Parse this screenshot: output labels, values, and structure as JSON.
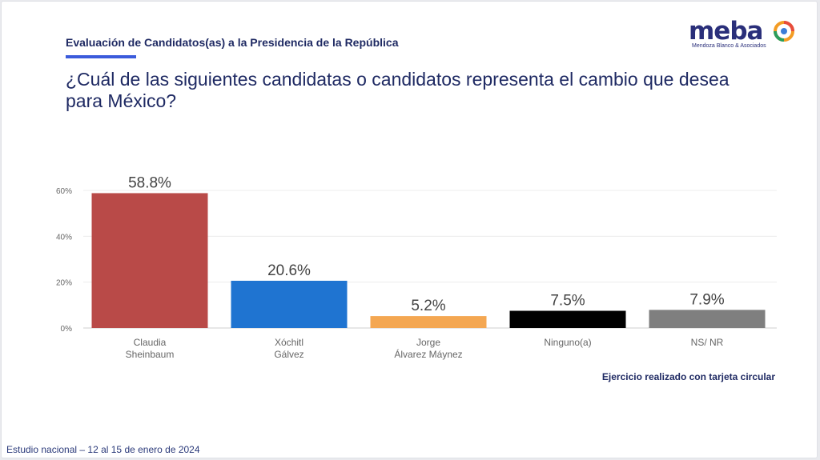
{
  "header": {
    "kicker": "Evaluación de Candidatos(as) a la Presidencia de la República",
    "question": "¿Cuál de las siguientes candidatas o candidatos representa el cambio que desea para México?"
  },
  "logo": {
    "word": "meba",
    "subtitle": "Mendoza Blanco & Asociados"
  },
  "note": "Ejercicio realizado con tarjeta circular",
  "footer": "Estudio nacional – 12 al 15 de enero de 2024",
  "colors": {
    "title": "#1f2a63",
    "sheinbaum": "#b94a48",
    "galvez": "#1f74d1",
    "maynez": "#f4a752",
    "ninguno": "#000000",
    "nsnr": "#7f7f7f"
  },
  "chart_data": {
    "type": "bar",
    "categories": [
      [
        "Claudia",
        "Sheinbaum"
      ],
      [
        "Xóchitl",
        "Gálvez"
      ],
      [
        "Jorge",
        "Álvarez Máynez"
      ],
      [
        "Ninguno(a)"
      ],
      [
        "NS/ NR"
      ]
    ],
    "values": [
      58.8,
      20.6,
      5.2,
      7.5,
      7.9
    ],
    "value_labels": [
      "58.8%",
      "20.6%",
      "5.2%",
      "7.5%",
      "7.9%"
    ],
    "bar_colors": [
      "#b94a48",
      "#1f74d1",
      "#f4a752",
      "#000000",
      "#7f7f7f"
    ],
    "yticks": [
      "0%",
      "20%",
      "40%",
      "60%"
    ],
    "ytick_values": [
      0,
      20,
      40,
      60
    ],
    "ylim": [
      0,
      60
    ],
    "grid": true,
    "legend": "none"
  }
}
